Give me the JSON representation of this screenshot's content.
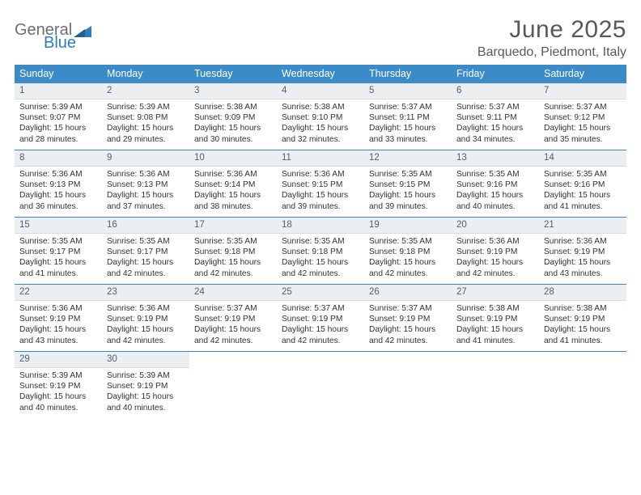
{
  "logo": {
    "part1": "General",
    "part2": "Blue"
  },
  "title": "June 2025",
  "location": "Barquedo, Piedmont, Italy",
  "colors": {
    "header_bg": "#3b8bc8",
    "header_text": "#ffffff",
    "daynum_bg": "#eceff1",
    "daynum_text": "#526070",
    "body_text": "#333333",
    "title_text": "#595959",
    "logo_gray": "#6d6e71",
    "logo_blue": "#2f7bbf",
    "rule": "#3b8bc8"
  },
  "weekdays": [
    "Sunday",
    "Monday",
    "Tuesday",
    "Wednesday",
    "Thursday",
    "Friday",
    "Saturday"
  ],
  "weeks": [
    [
      {
        "n": "1",
        "sr": "Sunrise: 5:39 AM",
        "ss": "Sunset: 9:07 PM",
        "dl1": "Daylight: 15 hours",
        "dl2": "and 28 minutes."
      },
      {
        "n": "2",
        "sr": "Sunrise: 5:39 AM",
        "ss": "Sunset: 9:08 PM",
        "dl1": "Daylight: 15 hours",
        "dl2": "and 29 minutes."
      },
      {
        "n": "3",
        "sr": "Sunrise: 5:38 AM",
        "ss": "Sunset: 9:09 PM",
        "dl1": "Daylight: 15 hours",
        "dl2": "and 30 minutes."
      },
      {
        "n": "4",
        "sr": "Sunrise: 5:38 AM",
        "ss": "Sunset: 9:10 PM",
        "dl1": "Daylight: 15 hours",
        "dl2": "and 32 minutes."
      },
      {
        "n": "5",
        "sr": "Sunrise: 5:37 AM",
        "ss": "Sunset: 9:11 PM",
        "dl1": "Daylight: 15 hours",
        "dl2": "and 33 minutes."
      },
      {
        "n": "6",
        "sr": "Sunrise: 5:37 AM",
        "ss": "Sunset: 9:11 PM",
        "dl1": "Daylight: 15 hours",
        "dl2": "and 34 minutes."
      },
      {
        "n": "7",
        "sr": "Sunrise: 5:37 AM",
        "ss": "Sunset: 9:12 PM",
        "dl1": "Daylight: 15 hours",
        "dl2": "and 35 minutes."
      }
    ],
    [
      {
        "n": "8",
        "sr": "Sunrise: 5:36 AM",
        "ss": "Sunset: 9:13 PM",
        "dl1": "Daylight: 15 hours",
        "dl2": "and 36 minutes."
      },
      {
        "n": "9",
        "sr": "Sunrise: 5:36 AM",
        "ss": "Sunset: 9:13 PM",
        "dl1": "Daylight: 15 hours",
        "dl2": "and 37 minutes."
      },
      {
        "n": "10",
        "sr": "Sunrise: 5:36 AM",
        "ss": "Sunset: 9:14 PM",
        "dl1": "Daylight: 15 hours",
        "dl2": "and 38 minutes."
      },
      {
        "n": "11",
        "sr": "Sunrise: 5:36 AM",
        "ss": "Sunset: 9:15 PM",
        "dl1": "Daylight: 15 hours",
        "dl2": "and 39 minutes."
      },
      {
        "n": "12",
        "sr": "Sunrise: 5:35 AM",
        "ss": "Sunset: 9:15 PM",
        "dl1": "Daylight: 15 hours",
        "dl2": "and 39 minutes."
      },
      {
        "n": "13",
        "sr": "Sunrise: 5:35 AM",
        "ss": "Sunset: 9:16 PM",
        "dl1": "Daylight: 15 hours",
        "dl2": "and 40 minutes."
      },
      {
        "n": "14",
        "sr": "Sunrise: 5:35 AM",
        "ss": "Sunset: 9:16 PM",
        "dl1": "Daylight: 15 hours",
        "dl2": "and 41 minutes."
      }
    ],
    [
      {
        "n": "15",
        "sr": "Sunrise: 5:35 AM",
        "ss": "Sunset: 9:17 PM",
        "dl1": "Daylight: 15 hours",
        "dl2": "and 41 minutes."
      },
      {
        "n": "16",
        "sr": "Sunrise: 5:35 AM",
        "ss": "Sunset: 9:17 PM",
        "dl1": "Daylight: 15 hours",
        "dl2": "and 42 minutes."
      },
      {
        "n": "17",
        "sr": "Sunrise: 5:35 AM",
        "ss": "Sunset: 9:18 PM",
        "dl1": "Daylight: 15 hours",
        "dl2": "and 42 minutes."
      },
      {
        "n": "18",
        "sr": "Sunrise: 5:35 AM",
        "ss": "Sunset: 9:18 PM",
        "dl1": "Daylight: 15 hours",
        "dl2": "and 42 minutes."
      },
      {
        "n": "19",
        "sr": "Sunrise: 5:35 AM",
        "ss": "Sunset: 9:18 PM",
        "dl1": "Daylight: 15 hours",
        "dl2": "and 42 minutes."
      },
      {
        "n": "20",
        "sr": "Sunrise: 5:36 AM",
        "ss": "Sunset: 9:19 PM",
        "dl1": "Daylight: 15 hours",
        "dl2": "and 42 minutes."
      },
      {
        "n": "21",
        "sr": "Sunrise: 5:36 AM",
        "ss": "Sunset: 9:19 PM",
        "dl1": "Daylight: 15 hours",
        "dl2": "and 43 minutes."
      }
    ],
    [
      {
        "n": "22",
        "sr": "Sunrise: 5:36 AM",
        "ss": "Sunset: 9:19 PM",
        "dl1": "Daylight: 15 hours",
        "dl2": "and 43 minutes."
      },
      {
        "n": "23",
        "sr": "Sunrise: 5:36 AM",
        "ss": "Sunset: 9:19 PM",
        "dl1": "Daylight: 15 hours",
        "dl2": "and 42 minutes."
      },
      {
        "n": "24",
        "sr": "Sunrise: 5:37 AM",
        "ss": "Sunset: 9:19 PM",
        "dl1": "Daylight: 15 hours",
        "dl2": "and 42 minutes."
      },
      {
        "n": "25",
        "sr": "Sunrise: 5:37 AM",
        "ss": "Sunset: 9:19 PM",
        "dl1": "Daylight: 15 hours",
        "dl2": "and 42 minutes."
      },
      {
        "n": "26",
        "sr": "Sunrise: 5:37 AM",
        "ss": "Sunset: 9:19 PM",
        "dl1": "Daylight: 15 hours",
        "dl2": "and 42 minutes."
      },
      {
        "n": "27",
        "sr": "Sunrise: 5:38 AM",
        "ss": "Sunset: 9:19 PM",
        "dl1": "Daylight: 15 hours",
        "dl2": "and 41 minutes."
      },
      {
        "n": "28",
        "sr": "Sunrise: 5:38 AM",
        "ss": "Sunset: 9:19 PM",
        "dl1": "Daylight: 15 hours",
        "dl2": "and 41 minutes."
      }
    ],
    [
      {
        "n": "29",
        "sr": "Sunrise: 5:39 AM",
        "ss": "Sunset: 9:19 PM",
        "dl1": "Daylight: 15 hours",
        "dl2": "and 40 minutes."
      },
      {
        "n": "30",
        "sr": "Sunrise: 5:39 AM",
        "ss": "Sunset: 9:19 PM",
        "dl1": "Daylight: 15 hours",
        "dl2": "and 40 minutes."
      },
      {
        "empty": true
      },
      {
        "empty": true
      },
      {
        "empty": true
      },
      {
        "empty": true
      },
      {
        "empty": true
      }
    ]
  ]
}
